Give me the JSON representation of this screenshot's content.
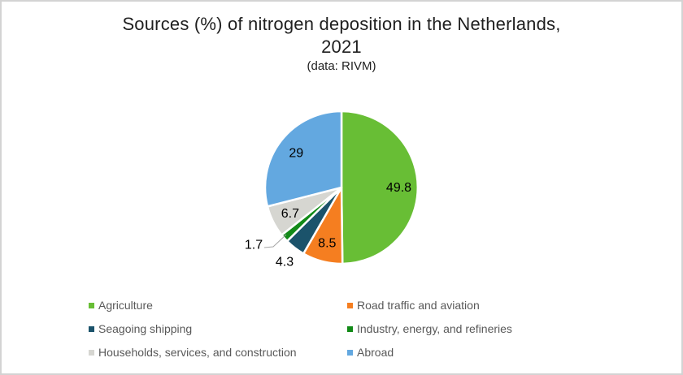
{
  "window": {
    "background": "#FFFFFF",
    "border_color": "#D3D3D3"
  },
  "chart_data": {
    "type": "pie",
    "title": "Sources (%) of nitrogen deposition in the Netherlands, 2021",
    "title_lines": [
      "Sources (%) of nitrogen deposition in the Netherlands,",
      "2021"
    ],
    "subtitle": "(data: RIVM)",
    "direction": "clockwise",
    "start_angle_deg": 0,
    "total": 100,
    "slice_border_color": "#FFFFFF",
    "label_color": "#000000",
    "leader_line_color": "#A6A6A6",
    "slices": [
      {
        "label": "Agriculture",
        "value": 49.8,
        "display": "49.8",
        "color": "#68BE35",
        "label_placement": "inside"
      },
      {
        "label": "Road traffic and aviation",
        "value": 8.5,
        "display": "8.5",
        "color": "#F57E20",
        "label_placement": "inside"
      },
      {
        "label": "Seagoing shipping",
        "value": 4.3,
        "display": "4.3",
        "color": "#1B536B",
        "label_placement": "outside"
      },
      {
        "label": "Industry, energy, and refineries",
        "value": 1.7,
        "display": "1.7",
        "color": "#128A17",
        "label_placement": "outside",
        "label_xy": [
          310,
          299
        ],
        "leader_points": [
          [
            323,
            303
          ],
          [
            334,
            302
          ],
          [
            350,
            287
          ]
        ]
      },
      {
        "label": "Households, services, and construction",
        "value": 6.7,
        "display": "6.7",
        "color": "#D6D6D1",
        "label_placement": "inside"
      },
      {
        "label": "Abroad",
        "value": 29,
        "display": "29",
        "color": "#63A8E0",
        "label_placement": "inside"
      }
    ],
    "legend": {
      "position": "bottom-left",
      "columns": 2,
      "text_color": "#595959"
    }
  }
}
